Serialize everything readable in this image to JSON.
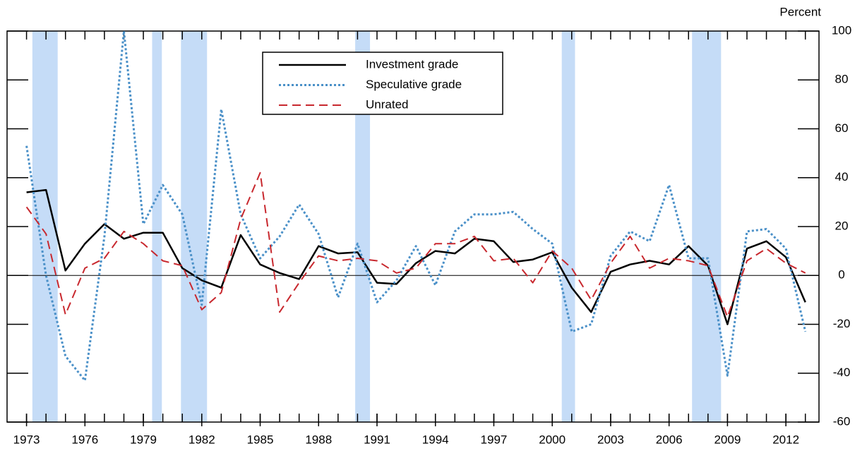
{
  "chart_data": {
    "type": "line",
    "y_axis_label": "Percent",
    "x": [
      1973,
      1974,
      1975,
      1976,
      1977,
      1978,
      1979,
      1980,
      1981,
      1982,
      1983,
      1984,
      1985,
      1986,
      1987,
      1988,
      1989,
      1990,
      1991,
      1992,
      1993,
      1994,
      1995,
      1996,
      1997,
      1998,
      1999,
      2000,
      2001,
      2002,
      2003,
      2004,
      2005,
      2006,
      2007,
      2008,
      2009,
      2010,
      2011,
      2012,
      2013
    ],
    "series": [
      {
        "name": "Investment grade",
        "color": "#000000",
        "dash": "solid",
        "values": [
          34,
          35,
          2,
          13,
          21,
          15,
          17.5,
          17.5,
          3,
          -2,
          -5,
          16.5,
          4.5,
          1,
          -1.5,
          12,
          9,
          9.5,
          -3,
          -3.5,
          5,
          10,
          9,
          15,
          14,
          5.5,
          6.5,
          9.5,
          -5,
          -15,
          1.5,
          4.5,
          6,
          4.5,
          12,
          4,
          -20,
          11,
          14,
          7.5,
          -11
        ]
      },
      {
        "name": "Speculative grade",
        "color": "#4a90c8",
        "dash": "dotted",
        "values": [
          53,
          0,
          -33,
          -43,
          16,
          100,
          21,
          37,
          25,
          -12,
          68,
          25,
          7,
          16,
          29,
          17,
          -9,
          13,
          -11,
          -2,
          12,
          -4,
          18,
          25,
          25,
          26,
          19,
          13,
          -23,
          -20,
          8,
          18,
          14,
          37,
          7,
          7,
          -41,
          18,
          19,
          11,
          -23
        ]
      },
      {
        "name": "Unrated",
        "color": "#c8282e",
        "dash": "dashed",
        "values": [
          28,
          17,
          -16,
          3,
          7,
          18,
          13,
          6,
          4,
          -14,
          -7,
          23,
          42,
          -15,
          -3,
          8,
          6,
          7,
          6,
          1,
          3,
          13,
          13,
          16,
          6,
          7,
          -3,
          10,
          3,
          -10,
          5,
          16,
          3,
          7,
          6,
          4,
          -17,
          6,
          11,
          5,
          1
        ]
      }
    ],
    "recessions": [
      [
        1973.3,
        1974.6
      ],
      [
        1979.45,
        1979.95
      ],
      [
        1980.93,
        1982.27
      ],
      [
        1989.88,
        1990.64
      ],
      [
        2000.49,
        2001.17
      ],
      [
        2007.18,
        2008.67
      ]
    ],
    "recession_color": "#c5dcf7",
    "xlim": [
      1972,
      2013.7
    ],
    "xticks": [
      1973,
      1976,
      1979,
      1982,
      1985,
      1988,
      1991,
      1994,
      1997,
      2000,
      2003,
      2006,
      2009,
      2012
    ],
    "xminorticks": [
      1973,
      1974,
      1975,
      1976,
      1977,
      1978,
      1979,
      1980,
      1981,
      1982,
      1983,
      1984,
      1985,
      1986,
      1987,
      1988,
      1989,
      1990,
      1991,
      1992,
      1993,
      1994,
      1995,
      1996,
      1997,
      1998,
      1999,
      2000,
      2001,
      2002,
      2003,
      2004,
      2005,
      2006,
      2007,
      2008,
      2009,
      2010,
      2011,
      2012,
      2013
    ],
    "ylim": [
      -60,
      100
    ],
    "yticks": [
      -60,
      -40,
      -20,
      0,
      20,
      40,
      60,
      80,
      100
    ],
    "zero_line": true,
    "legend": "top-center"
  }
}
